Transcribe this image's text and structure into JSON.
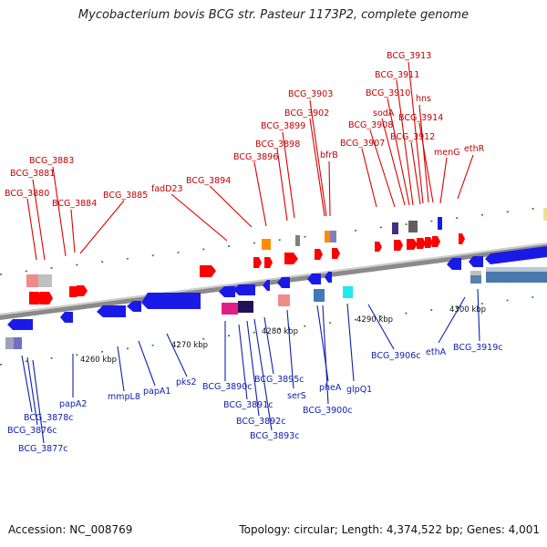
{
  "title": "Mycobacterium bovis BCG str. Pasteur 1173P2, complete genome",
  "accession": "Accession: NC_008769",
  "summary": "Topology: circular; Length: 4,374,522 bp; Genes: 4,001",
  "ticks": [
    "4260 kbp",
    "4270 kbp",
    "4280 kbp",
    "4290 kbp",
    "4300 kbp"
  ],
  "top_labels": [
    "BCG_3880",
    "BCG_3881",
    "BCG_3883",
    "BCG_3884",
    "BCG_3885",
    "fadD23",
    "BCG_3894",
    "BCG_3896",
    "BCG_3898",
    "BCG_3899",
    "BCG_3902",
    "BCG_3903",
    "bfrB",
    "BCG_3907",
    "BCG_3908",
    "sodA",
    "BCG_3910",
    "BCG_3911",
    "BCG_3913",
    "hns",
    "BCG_3912",
    "BCG_3914",
    "menG",
    "ethR"
  ],
  "bottom_labels": [
    "BCG_3878c",
    "BCG_3876c",
    "BCG_3877c",
    "papA2",
    "mmpL8",
    "papA1",
    "pks2",
    "BCG_3890c",
    "BCG_3891c",
    "BCG_3892c",
    "BCG_3893c",
    "BCG_3895c",
    "serS",
    "pheA",
    "BCG_3900c",
    "glpQ1",
    "BCG_3906c",
    "ethA",
    "BCG_3919c"
  ],
  "colors": {
    "top_label": "#c00000",
    "bottom_label": "#1020b0",
    "forward_gene": "#ff0000",
    "reverse_gene": "#1a1ae8",
    "backbone": "#888888"
  }
}
